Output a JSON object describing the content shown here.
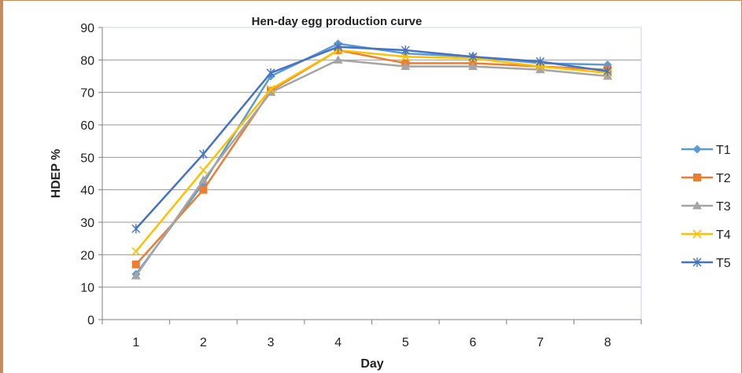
{
  "chart_data": {
    "type": "line",
    "title": "Hen-day egg production curve",
    "xlabel": "Day",
    "ylabel": "HDEP %",
    "categories": [
      "1",
      "2",
      "3",
      "4",
      "5",
      "6",
      "7",
      "8"
    ],
    "ylim": [
      0,
      90
    ],
    "yticks": [
      0,
      10,
      20,
      30,
      40,
      50,
      60,
      70,
      80,
      90
    ],
    "grid": true,
    "legend_position": "right",
    "series": [
      {
        "name": "T1",
        "color": "#5b9bd5",
        "marker": "diamond",
        "values": [
          14,
          42,
          75,
          85,
          82,
          81,
          79,
          78.5
        ]
      },
      {
        "name": "T2",
        "color": "#ed7d31",
        "marker": "square",
        "values": [
          17,
          40,
          70.5,
          83,
          79,
          79,
          78,
          77
        ]
      },
      {
        "name": "T3",
        "color": "#a5a5a5",
        "marker": "triangle",
        "values": [
          13.5,
          43,
          70,
          80,
          78,
          78,
          77,
          75
        ]
      },
      {
        "name": "T4",
        "color": "#ffc000",
        "marker": "x",
        "values": [
          21,
          46,
          71,
          83,
          81,
          80.5,
          78,
          76
        ]
      },
      {
        "name": "T5",
        "color": "#4472c4",
        "marker": "star",
        "values": [
          28,
          51,
          76,
          84,
          83,
          81,
          79.5,
          76.5
        ]
      }
    ]
  }
}
